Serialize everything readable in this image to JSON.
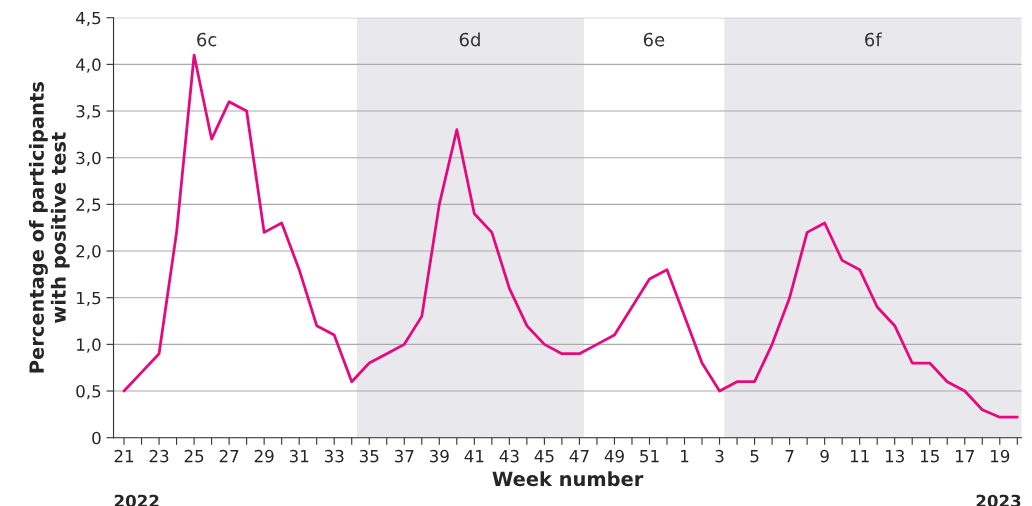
{
  "chart_data": {
    "type": "line",
    "xlabel": "Week number",
    "ylabel": "Percentage of participants\nwith positive test",
    "categories": [
      "21",
      null,
      "23",
      null,
      "25",
      null,
      "27",
      null,
      "29",
      null,
      "31",
      null,
      "33",
      null,
      "35",
      null,
      "37",
      null,
      "39",
      null,
      "41",
      null,
      "43",
      null,
      "45",
      null,
      "47",
      null,
      "49",
      null,
      "51",
      null,
      "1",
      null,
      "3",
      null,
      "5",
      null,
      "7",
      null,
      "9",
      null,
      "11",
      null,
      "13",
      null,
      "15",
      null,
      "17",
      null,
      "19",
      null
    ],
    "series": [
      {
        "color": "#e5097f",
        "values": [
          0.5,
          0.7,
          0.9,
          2.2,
          4.1,
          3.2,
          3.6,
          3.5,
          2.2,
          2.3,
          1.8,
          1.2,
          1.1,
          0.6,
          0.8,
          0.9,
          1.0,
          1.3,
          2.5,
          3.3,
          2.4,
          2.2,
          1.6,
          1.2,
          1.0,
          0.9,
          0.9,
          1.0,
          1.1,
          1.4,
          1.7,
          1.8,
          1.3,
          0.8,
          0.5,
          0.6,
          0.6,
          1.0,
          1.5,
          2.2,
          2.3,
          1.9,
          1.8,
          1.4,
          1.2,
          0.8,
          0.8,
          0.6,
          0.5,
          0.3,
          0.22,
          0.22
        ]
      }
    ],
    "ylim": [
      0,
      4.5
    ],
    "yticks": [
      0,
      {
        "value": 0.5,
        "label": "0,5"
      },
      {
        "value": 1.0,
        "label": "1,0"
      },
      {
        "value": 1.5,
        "label": "1,5"
      },
      {
        "value": 2.0,
        "label": "2,0"
      },
      {
        "value": 2.5,
        "label": "2,5"
      },
      {
        "value": 3.0,
        "label": "3,0"
      },
      {
        "value": 3.5,
        "label": "3,5"
      },
      {
        "value": 4.0,
        "label": "4,0"
      },
      {
        "value": 4.5,
        "label": "4,5"
      }
    ],
    "grid": "y",
    "legend": false,
    "marker": "none",
    "line_style": "solid",
    "annotations": [
      "2022",
      "2023",
      "6c",
      "6d",
      "6e",
      "6f"
    ]
  }
}
